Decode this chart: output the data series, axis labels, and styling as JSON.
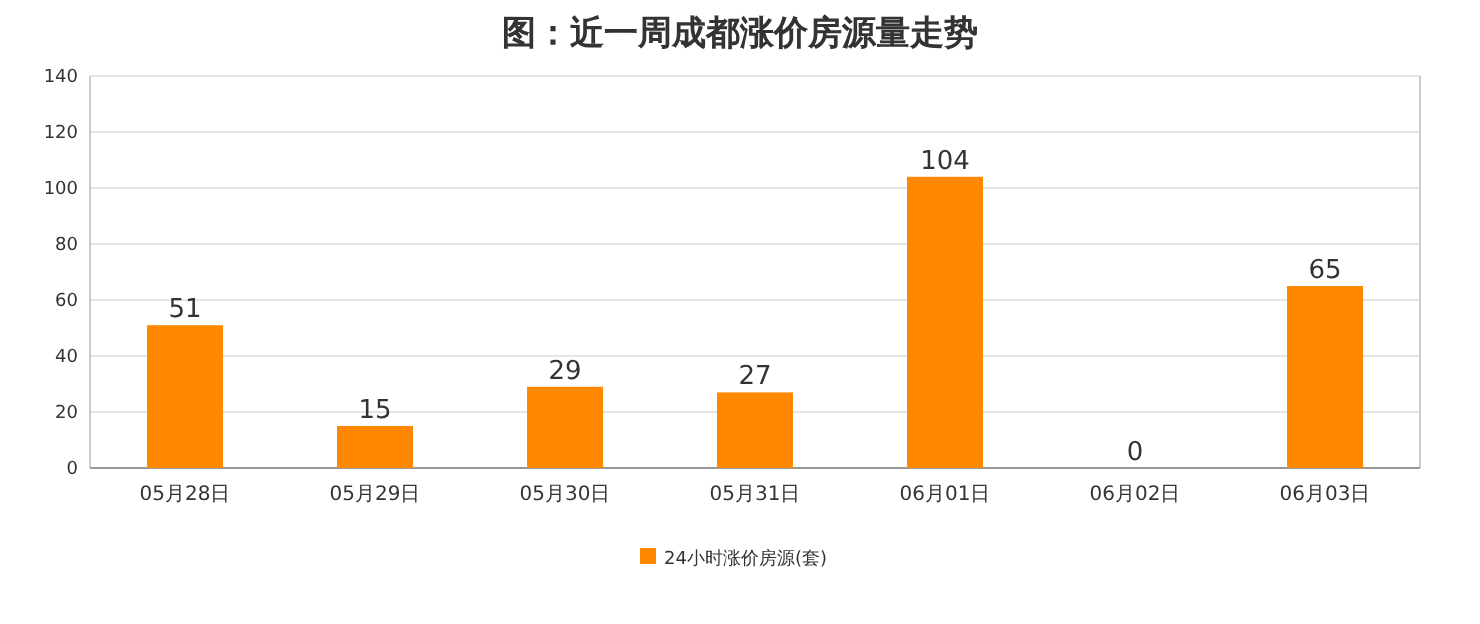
{
  "chart_data": {
    "type": "bar",
    "title": "图：近一周成都涨价房源量走势",
    "categories": [
      "05月28日",
      "05月29日",
      "05月30日",
      "05月31日",
      "06月01日",
      "06月02日",
      "06月03日"
    ],
    "series": [
      {
        "name": "24小时涨价房源(套)",
        "color": "#ff8800",
        "values": [
          51,
          15,
          29,
          27,
          104,
          0,
          65
        ]
      }
    ],
    "ylim": [
      0,
      140
    ],
    "yticks": [
      0,
      20,
      40,
      60,
      80,
      100,
      120,
      140
    ],
    "grid": "y",
    "data_labels": true,
    "legend": "bottom"
  }
}
